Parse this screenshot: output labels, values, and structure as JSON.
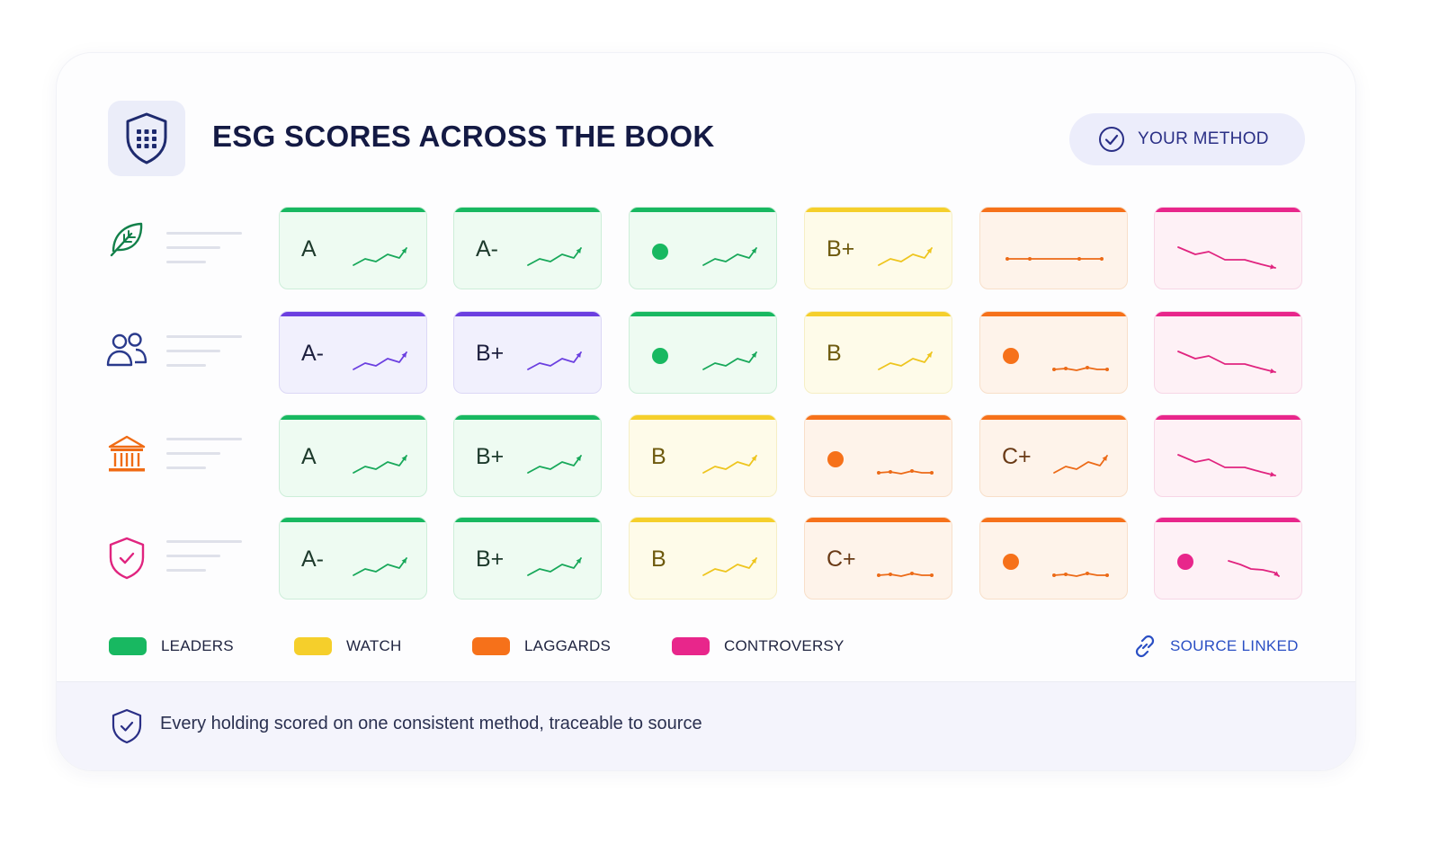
{
  "header": {
    "title": "ESG SCORES ACROSS THE BOOK",
    "method_button": "YOUR METHOD"
  },
  "colors": {
    "leaders": "#18b861",
    "watch": "#f5cf2b",
    "laggards": "#f6711a",
    "controversy": "#e8268b",
    "social_purple": "#6b3fe0"
  },
  "rows": [
    {
      "icon": "leaf-icon",
      "cells": [
        {
          "grade": "A",
          "status": "leaders",
          "trend": "up"
        },
        {
          "grade": "A-",
          "status": "leaders",
          "trend": "up"
        },
        {
          "grade": "",
          "status": "leaders",
          "trend": "up",
          "marker": "dot"
        },
        {
          "grade": "B+",
          "status": "watch",
          "trend": "up"
        },
        {
          "grade": "",
          "status": "laggards",
          "trend": "flat-long"
        },
        {
          "grade": "",
          "status": "controversy",
          "trend": "down-long"
        }
      ]
    },
    {
      "icon": "people-icon",
      "cells": [
        {
          "grade": "A-",
          "status": "social",
          "trend": "up"
        },
        {
          "grade": "B+",
          "status": "social",
          "trend": "up"
        },
        {
          "grade": "",
          "status": "leaders",
          "trend": "up",
          "marker": "dot"
        },
        {
          "grade": "B",
          "status": "watch",
          "trend": "up"
        },
        {
          "grade": "",
          "status": "laggards",
          "trend": "flat",
          "marker": "dot"
        },
        {
          "grade": "",
          "status": "controversy",
          "trend": "down-long"
        }
      ]
    },
    {
      "icon": "institution-icon",
      "cells": [
        {
          "grade": "A",
          "status": "leaders",
          "trend": "up"
        },
        {
          "grade": "B+",
          "status": "leaders",
          "trend": "up"
        },
        {
          "grade": "B",
          "status": "watch",
          "trend": "up"
        },
        {
          "grade": "",
          "status": "laggards",
          "trend": "flat",
          "marker": "dot"
        },
        {
          "grade": "C+",
          "status": "laggards",
          "trend": "up"
        },
        {
          "grade": "",
          "status": "controversy",
          "trend": "down-long"
        }
      ]
    },
    {
      "icon": "shield-check-icon",
      "cells": [
        {
          "grade": "A-",
          "status": "leaders",
          "trend": "up"
        },
        {
          "grade": "B+",
          "status": "leaders",
          "trend": "up"
        },
        {
          "grade": "B",
          "status": "watch",
          "trend": "up"
        },
        {
          "grade": "C+",
          "status": "laggards",
          "trend": "flat"
        },
        {
          "grade": "",
          "status": "laggards",
          "trend": "flat",
          "marker": "dot"
        },
        {
          "grade": "",
          "status": "controversy",
          "trend": "down",
          "marker": "dot"
        }
      ]
    }
  ],
  "legend": {
    "leaders": "LEADERS",
    "watch": "WATCH",
    "laggards": "LAGGARDS",
    "controversy": "CONTROVERSY",
    "source_link": "SOURCE LINKED"
  },
  "footer": {
    "text": "Every holding scored on one consistent method, traceable to source"
  }
}
